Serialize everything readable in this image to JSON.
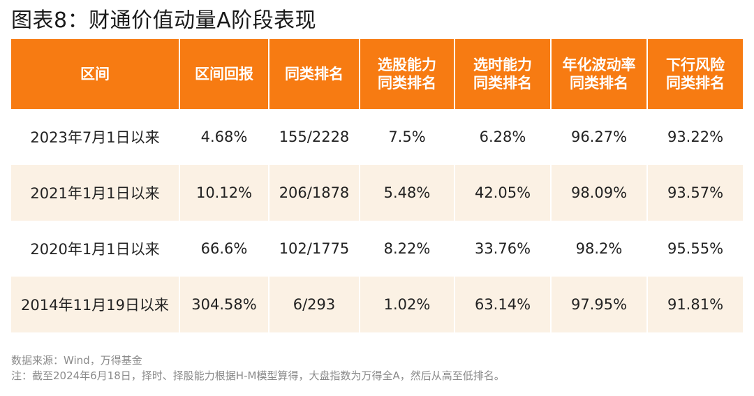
{
  "title": "图表8：财通价值动量A阶段表现",
  "table": {
    "headers": [
      [
        "区间"
      ],
      [
        "区间回报"
      ],
      [
        "同类排名"
      ],
      [
        "选股能力",
        "同类排名"
      ],
      [
        "选时能力",
        "同类排名"
      ],
      [
        "年化波动率",
        "同类排名"
      ],
      [
        "下行风险",
        "同类排名"
      ]
    ],
    "rows": [
      [
        "2023年7月1日以来",
        "4.68%",
        "155/2228",
        "7.5%",
        "6.28%",
        "96.27%",
        "93.22%"
      ],
      [
        "2021年1月1日以来",
        "10.12%",
        "206/1878",
        "5.48%",
        "42.05%",
        "98.09%",
        "93.57%"
      ],
      [
        "2020年1月1日以来",
        "66.6%",
        "102/1775",
        "8.22%",
        "33.76%",
        "98.2%",
        "95.55%"
      ],
      [
        "2014年11月19日以来",
        "304.58%",
        "6/293",
        "1.02%",
        "63.14%",
        "97.95%",
        "91.81%"
      ]
    ]
  },
  "source": "数据来源：Wind，万得基金",
  "note": "注：截至2024年6月18日，择时、择股能力根据H-M模型算得，大盘指数为万得全A，然后从高至低排名。",
  "colors": {
    "header_bg": "#f77b12",
    "stripe_bg": "#fbf1e4"
  }
}
